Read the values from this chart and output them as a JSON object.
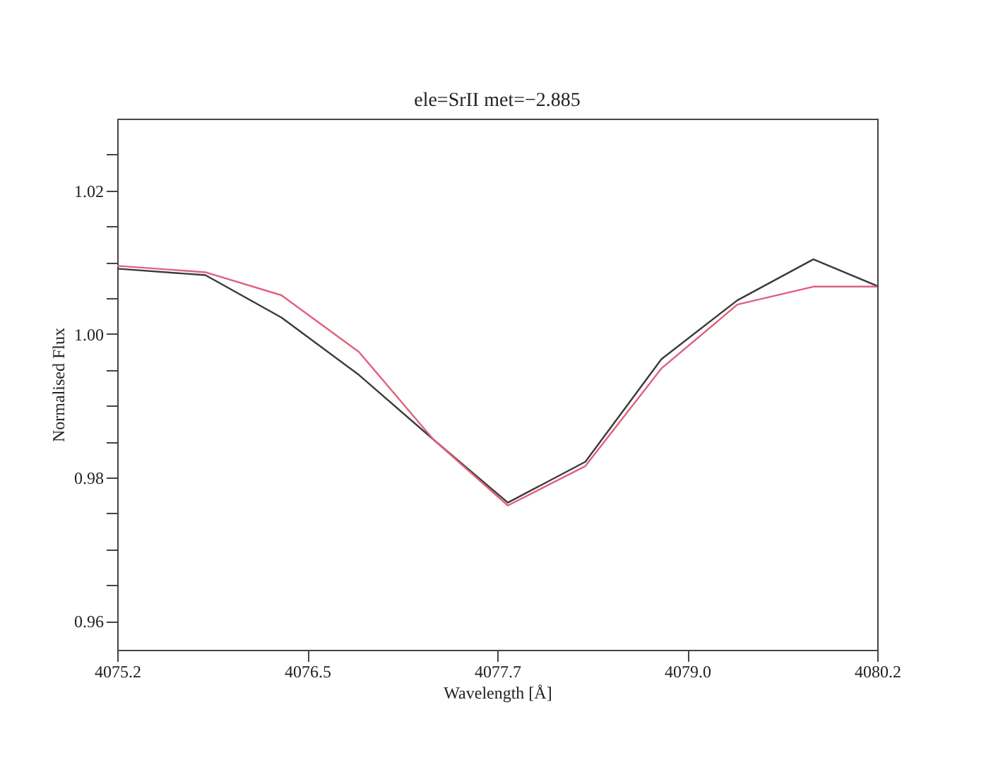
{
  "chart_data": {
    "type": "line",
    "title": "ele=SrII met=−2.885",
    "xlabel": "Wavelength [Å]",
    "ylabel": "Normalised Flux",
    "xlim": [
      4075.2,
      4080.2
    ],
    "xticks": [
      4075.2,
      {
        "value": 4076.45,
        "label": "4076.5"
      },
      4077.7,
      {
        "value": 4078.95,
        "label": "4079.0"
      },
      4080.2
    ],
    "ylim": [
      0.956,
      1.03
    ],
    "yticks": [
      {
        "value": 0.96,
        "label": "0.96"
      },
      {
        "value": 0.965,
        "label": null
      },
      {
        "value": 0.97,
        "label": null
      },
      {
        "value": 0.975,
        "label": null
      },
      {
        "value": 0.98,
        "label": "0.98"
      },
      {
        "value": 0.985,
        "label": null
      },
      {
        "value": 0.99,
        "label": null
      },
      {
        "value": 0.995,
        "label": null
      },
      {
        "value": 1.0,
        "label": "1.00"
      },
      {
        "value": 1.005,
        "label": null
      },
      {
        "value": 1.01,
        "label": null
      },
      {
        "value": 1.015,
        "label": null
      },
      {
        "value": 1.02,
        "label": "1.02"
      },
      {
        "value": 1.025,
        "label": null
      }
    ],
    "x": [
      4075.2,
      4075.78,
      4076.28,
      4076.79,
      4077.28,
      4077.77,
      4078.28,
      4078.78,
      4079.28,
      4079.78,
      4080.2
    ],
    "series": [
      {
        "color": "#3a3a3a",
        "values": [
          1.0091,
          1.0082,
          1.0023,
          0.9943,
          0.9853,
          0.9765,
          0.9822,
          0.9965,
          1.0047,
          1.0104,
          1.0067
        ]
      },
      {
        "color": "#e0607e",
        "values": [
          1.0095,
          1.0086,
          1.0054,
          0.9975,
          0.9853,
          0.9761,
          0.9816,
          0.9952,
          1.0041,
          1.0066,
          1.0066
        ]
      }
    ],
    "grid": false,
    "legend": false,
    "marker": "none",
    "line_style": "solid"
  }
}
